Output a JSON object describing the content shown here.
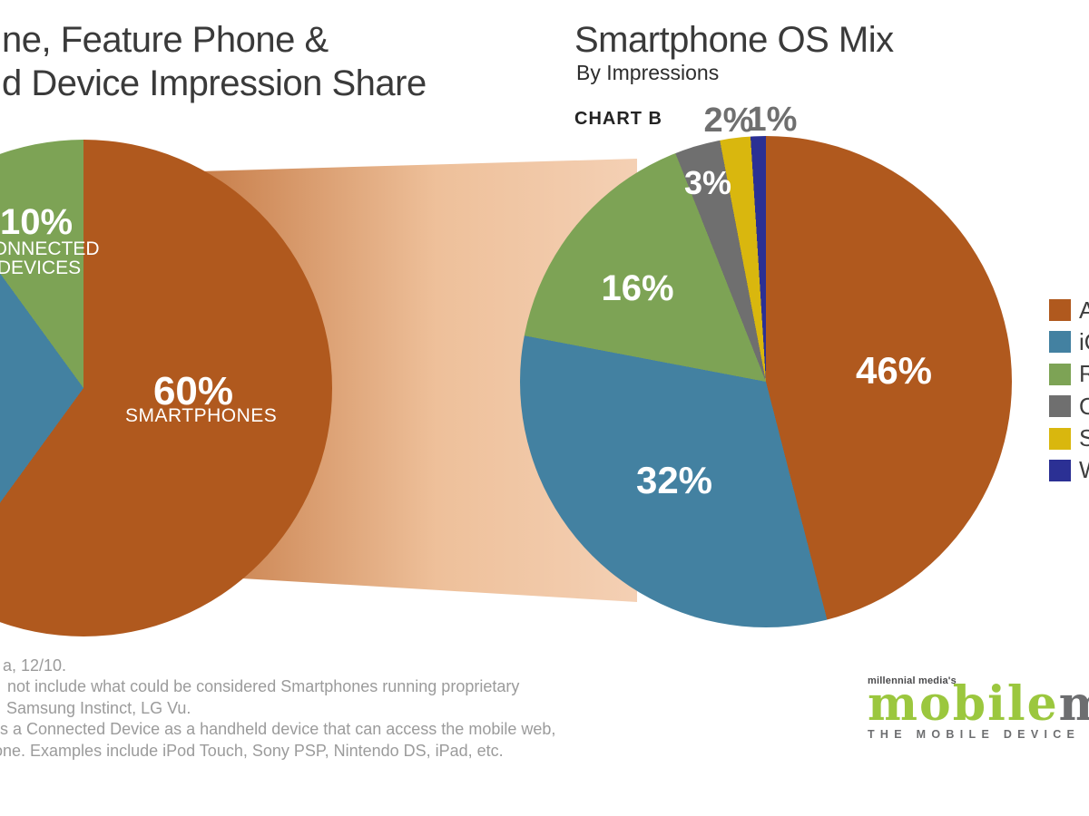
{
  "beam": {
    "left": "#bd6c34",
    "mid": "#eec09a",
    "right": "#f4d0b4"
  },
  "chart_data": [
    {
      "type": "pie",
      "title_visible_line1": "ne, Feature Phone &",
      "title_visible_line2": "d Device Impression Share",
      "direction": "clockwise",
      "start_angle": "12-oclock",
      "slices": [
        {
          "name": "Smartphones",
          "value": 60,
          "label_pct": "60%",
          "sublabel": "SMARTPHONES",
          "color": "#b0591e"
        },
        {
          "name": "Feature Phones",
          "value": 30,
          "label_pct": "",
          "sublabel": "",
          "color": "#4381a1"
        },
        {
          "name": "Connected Devices",
          "value": 10,
          "label_pct": "10%",
          "sublabel_line1": "CONNECTED",
          "sublabel_line2": "DEVICES",
          "color": "#7da355"
        }
      ]
    },
    {
      "type": "pie",
      "title": "Smartphone OS Mix",
      "subtitle": "By Impressions",
      "chart_label": "CHART B",
      "direction": "clockwise",
      "start_angle": "12-oclock",
      "legend_position": "right",
      "slices": [
        {
          "os": "Android",
          "value": 46,
          "label_pct": "46%",
          "color": "#b0591e"
        },
        {
          "os": "iOS",
          "value": 32,
          "label_pct": "32%",
          "color": "#4381a1"
        },
        {
          "os": "RIM",
          "value": 16,
          "label_pct": "16%",
          "color": "#7da355"
        },
        {
          "os": "Other",
          "value": 3,
          "label_pct": "3%",
          "color": "#6f6f6f"
        },
        {
          "os": "Symbian",
          "value": 2,
          "label_pct": "2%",
          "color": "#d9b70e"
        },
        {
          "os": "Windows",
          "value": 1,
          "label_pct": "1%",
          "color": "#2b3094"
        }
      ]
    }
  ],
  "footnotes": {
    "lines": [
      "a, 12/10.",
      "not include what could be considered Smartphones running proprietary",
      "Samsung Instinct, LG Vu.",
      "s a Connected Device as a handheld device that can access the mobile web,",
      "one. Examples include iPod Touch, Sony PSP, Nintendo DS, iPad, etc."
    ]
  },
  "logo": {
    "prefix": "millennial media's",
    "brand_primary": "mobile",
    "brand_secondary": "m",
    "tagline": "THE MOBILE DEVICE I",
    "green": "#9bc73e",
    "gray": "#6d6e70"
  }
}
